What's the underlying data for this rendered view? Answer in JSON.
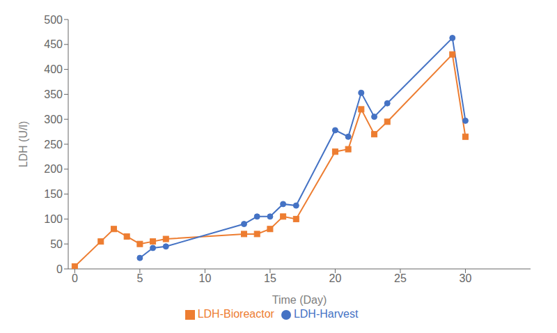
{
  "chart_data": {
    "type": "line",
    "x_label": "Time (Day)",
    "y_label": "LDH (U/l)",
    "xlim": [
      -0.5,
      35
    ],
    "xticks": [
      0,
      5,
      10,
      15,
      20,
      25,
      30
    ],
    "ylim": [
      0,
      500
    ],
    "yticks": [
      0,
      50,
      100,
      150,
      200,
      250,
      300,
      350,
      400,
      450,
      500
    ],
    "grid": false,
    "legend": "bottom",
    "series": [
      {
        "name": "LDH-Bioreactor",
        "color": "#ED7D31",
        "marker": "square",
        "x": [
          0,
          2,
          3,
          4,
          5,
          6,
          7,
          13,
          14,
          15,
          16,
          17,
          20,
          21,
          22,
          23,
          24,
          29,
          30
        ],
        "values": [
          5,
          55,
          80,
          65,
          50,
          55,
          60,
          70,
          70,
          80,
          105,
          100,
          235,
          240,
          320,
          270,
          295,
          430,
          265
        ]
      },
      {
        "name": "LDH-Harvest",
        "color": "#4472C4",
        "marker": "circle",
        "x": [
          5,
          6,
          7,
          13,
          14,
          15,
          16,
          17,
          20,
          21,
          22,
          23,
          24,
          29,
          30
        ],
        "values": [
          22,
          42,
          45,
          90,
          105,
          105,
          130,
          127,
          278,
          265,
          353,
          305,
          332,
          463,
          297
        ]
      }
    ]
  }
}
